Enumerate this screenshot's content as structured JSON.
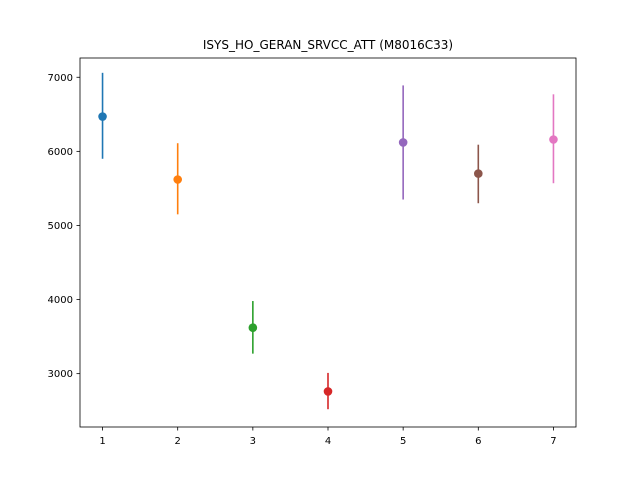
{
  "chart_data": {
    "type": "scatter",
    "title": "ISYS_HO_GERAN_SRVCC_ATT (M8016C33)",
    "xlabel": "",
    "ylabel": "",
    "xlim": [
      0.7,
      7.3
    ],
    "ylim": [
      2280,
      7260
    ],
    "grid": false,
    "x_ticks": [
      1,
      2,
      3,
      4,
      5,
      6,
      7
    ],
    "y_ticks": [
      3000,
      4000,
      5000,
      6000,
      7000
    ],
    "points": [
      {
        "x": 1,
        "y": 6470,
        "low": 5900,
        "high": 7060,
        "color": "#1f77b4"
      },
      {
        "x": 2,
        "y": 5620,
        "low": 5150,
        "high": 6110,
        "color": "#ff7f0e"
      },
      {
        "x": 3,
        "y": 3620,
        "low": 3270,
        "high": 3980,
        "color": "#2ca02c"
      },
      {
        "x": 4,
        "y": 2760,
        "low": 2520,
        "high": 3010,
        "color": "#d62728"
      },
      {
        "x": 5,
        "y": 6120,
        "low": 5350,
        "high": 6890,
        "color": "#9467bd"
      },
      {
        "x": 6,
        "y": 5700,
        "low": 5300,
        "high": 6090,
        "color": "#8c564b"
      },
      {
        "x": 7,
        "y": 6160,
        "low": 5570,
        "high": 6770,
        "color": "#e377c2"
      }
    ]
  }
}
